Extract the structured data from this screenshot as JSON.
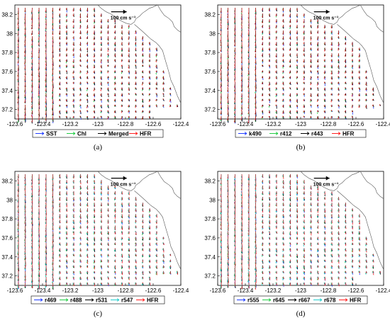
{
  "chart_data": [
    {
      "type": "quiver",
      "caption": "(a)",
      "x_ticks": [
        "-123.6",
        "-123.4",
        "-123.2",
        "-123",
        "-122.8",
        "-122.6",
        "-122.4"
      ],
      "y_ticks": [
        "38.2",
        "38",
        "37.8",
        "37.6",
        "37.4",
        "37.2"
      ],
      "xlim": [
        -123.6,
        -122.4
      ],
      "ylim": [
        37.1,
        38.3
      ],
      "scale_label": "100 cm s⁻¹",
      "series": [
        {
          "name": "SST",
          "color": "#1f3cff"
        },
        {
          "name": "Chl",
          "color": "#22cc44"
        },
        {
          "name": "Merged",
          "color": "#000000"
        },
        {
          "name": "HFR",
          "color": "#ff2020"
        }
      ]
    },
    {
      "type": "quiver",
      "caption": "(b)",
      "x_ticks": [
        "-123.6",
        "-123.4",
        "-123.2",
        "-123",
        "-122.8",
        "-122.6",
        "-122.4"
      ],
      "y_ticks": [
        "38.2",
        "38",
        "37.8",
        "37.6",
        "37.4",
        "37.2"
      ],
      "xlim": [
        -123.6,
        -122.4
      ],
      "ylim": [
        37.1,
        38.3
      ],
      "scale_label": "100 cm s⁻¹",
      "series": [
        {
          "name": "k490",
          "color": "#1f3cff"
        },
        {
          "name": "r412",
          "color": "#22cc44"
        },
        {
          "name": "r443",
          "color": "#000000"
        },
        {
          "name": "HFR",
          "color": "#ff2020"
        }
      ]
    },
    {
      "type": "quiver",
      "caption": "(c)",
      "x_ticks": [
        "-123.6",
        "-123.4",
        "-123.2",
        "-123",
        "-122.8",
        "-122.6",
        "-122.4"
      ],
      "y_ticks": [
        "38.2",
        "38",
        "37.8",
        "37.6",
        "37.4",
        "37.2"
      ],
      "xlim": [
        -123.6,
        -122.4
      ],
      "ylim": [
        37.1,
        38.3
      ],
      "scale_label": "100 cm s⁻¹",
      "series": [
        {
          "name": "r469",
          "color": "#1f3cff"
        },
        {
          "name": "r488",
          "color": "#22cc44"
        },
        {
          "name": "r531",
          "color": "#000000"
        },
        {
          "name": "r547",
          "color": "#22cccc"
        },
        {
          "name": "HFR",
          "color": "#ff2020"
        }
      ]
    },
    {
      "type": "quiver",
      "caption": "(d)",
      "x_ticks": [
        "-123.6",
        "-123.4",
        "-123.2",
        "-123",
        "-122.8",
        "-122.6",
        "-122.4"
      ],
      "y_ticks": [
        "38.2",
        "38",
        "37.8",
        "37.6",
        "37.4",
        "37.2"
      ],
      "xlim": [
        -123.6,
        -122.4
      ],
      "ylim": [
        37.1,
        38.3
      ],
      "scale_label": "100 cm s⁻¹",
      "series": [
        {
          "name": "r555",
          "color": "#1f3cff"
        },
        {
          "name": "r645",
          "color": "#22cc44"
        },
        {
          "name": "r667",
          "color": "#000000"
        },
        {
          "name": "r678",
          "color": "#22cccc"
        },
        {
          "name": "HFR",
          "color": "#ff2020"
        }
      ]
    }
  ]
}
